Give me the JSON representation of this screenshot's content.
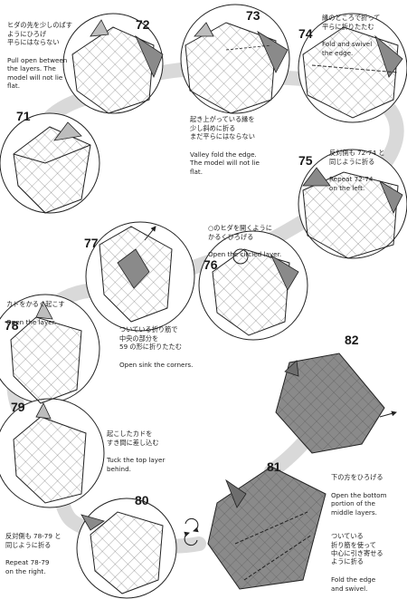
{
  "colors": {
    "path": "#d9d9d9",
    "paper_dark": "#8a8a8a",
    "paper_mid": "#bdbdbd",
    "paper_light": "#efefef",
    "line": "#333333"
  },
  "steps": [
    {
      "num": "71"
    },
    {
      "num": "72",
      "ja": "ヒダの先を少しのばす\nようにひろげ\n平らにはならない",
      "en": "Pull open between\nthe layers.  The\nmodel will not lie\nflat."
    },
    {
      "num": "73",
      "ja": "起き上がっている縁を\n少し斜めに折る\nまだ平らにはならない",
      "en": "Valley fold the edge.\nThe model will not lie\nflat."
    },
    {
      "num": "74",
      "ja": "縁のところで折って\n平らに折りたたむ",
      "en": "Fold and swivel\nthe edge."
    },
    {
      "num": "75",
      "ja": "反対側も 72-74 と\n同じように折る",
      "en": "Repeat 72-74\non the left."
    },
    {
      "num": "76",
      "ja": "○のヒダを開くように\nかるくひろげる",
      "en": "Open the circled layer."
    },
    {
      "num": "77",
      "ja": "ついている折り筋で\n中央の部分を\n59 の形に折りたたむ",
      "en": "Open sink the corners."
    },
    {
      "num": "78",
      "ja": "カドをかるく起こす",
      "en": "Open the layer."
    },
    {
      "num": "79",
      "ja": "起こしたカドを\nすき間に差し込む",
      "en": "Tuck the top layer\nbehind."
    },
    {
      "num": "80",
      "ja": "反対側も 78-79 と\n同じように折る",
      "en": "Repeat 78-79\non the right."
    },
    {
      "num": "81",
      "ja": "ついている\n折り筋を使って\n中心に引き寄せる\nように折る",
      "en": "Fold the edge\nand swivel."
    },
    {
      "num": "82",
      "ja": "下の方をひろげる",
      "en": "Open the bottom\nportion of the\nmiddle layers."
    }
  ]
}
